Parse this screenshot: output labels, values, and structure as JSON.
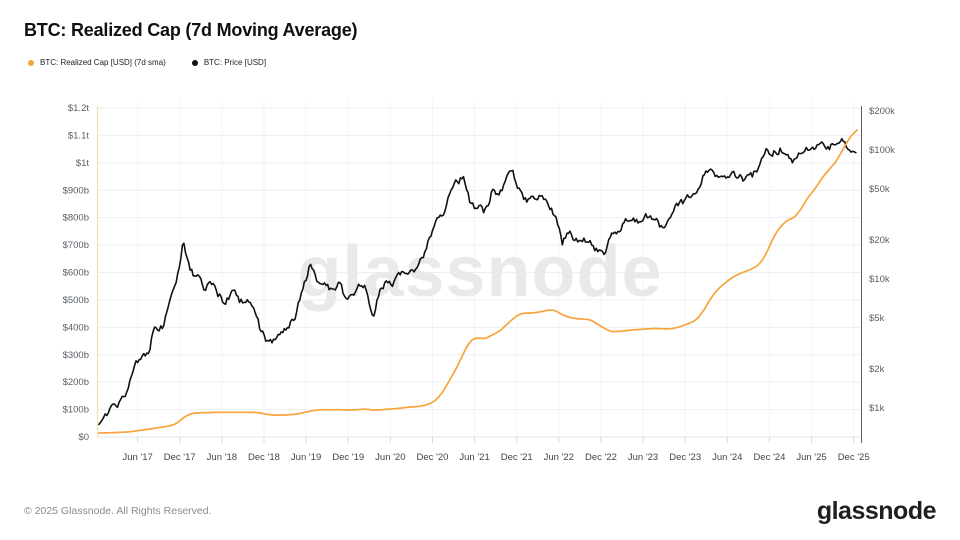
{
  "header": {
    "title": "BTC: Realized Cap (7d Moving Average)"
  },
  "legend": [
    {
      "label": "BTC: Realized Cap [USD] (7d sma)",
      "color": "#f7a43a"
    },
    {
      "label": "BTC: Price [USD]",
      "color": "#111111"
    }
  ],
  "watermark": "glassnode",
  "footer": {
    "copyright": "© 2025 Glassnode. All Rights Reserved.",
    "logo": "glassnode"
  },
  "chart_data": {
    "type": "line",
    "title": "BTC: Realized Cap (7d Moving Average)",
    "grid": true,
    "legend_position": "top-left",
    "months_start": "2016-12 (mid-month), monthly samples thereafter, ending mid 2025-12",
    "x_tick_labels": [
      "Jun '17",
      "Dec '17",
      "Jun '18",
      "Dec '18",
      "Jun '19",
      "Dec '19",
      "Jun '20",
      "Dec '20",
      "Jun '21",
      "Dec '21",
      "Jun '22",
      "Dec '22",
      "Jun '23",
      "Dec '23",
      "Jun '24",
      "Dec '24",
      "Jun '25",
      "Dec '25"
    ],
    "left_axis": {
      "title": "Realized Cap [USD]",
      "scale": "linear",
      "min": 0,
      "max": 1200000000000,
      "ticks": [
        {
          "label": "$0",
          "billions": 0
        },
        {
          "label": "$100b",
          "billions": 100
        },
        {
          "label": "$200b",
          "billions": 200
        },
        {
          "label": "$300b",
          "billions": 300
        },
        {
          "label": "$400b",
          "billions": 400
        },
        {
          "label": "$500b",
          "billions": 500
        },
        {
          "label": "$600b",
          "billions": 600
        },
        {
          "label": "$700b",
          "billions": 700
        },
        {
          "label": "$800b",
          "billions": 800
        },
        {
          "label": "$900b",
          "billions": 900
        },
        {
          "label": "$1t",
          "billions": 1000
        },
        {
          "label": "$1.1t",
          "billions": 1100
        },
        {
          "label": "$1.2t",
          "billions": 1200
        }
      ]
    },
    "right_axis": {
      "title": "Price [USD]",
      "scale": "log",
      "min": 700,
      "max": 230000,
      "ticks": [
        {
          "label": "$1k",
          "usd": 1000
        },
        {
          "label": "$2k",
          "usd": 2000
        },
        {
          "label": "$5k",
          "usd": 5000
        },
        {
          "label": "$10k",
          "usd": 10000
        },
        {
          "label": "$20k",
          "usd": 20000
        },
        {
          "label": "$50k",
          "usd": 50000
        },
        {
          "label": "$100k",
          "usd": 100000
        },
        {
          "label": "$200k",
          "usd": 200000
        }
      ]
    },
    "series": [
      {
        "name": "BTC: Realized Cap [USD] (7d sma)",
        "axis": "left",
        "color": "#f7a43a",
        "unit": "USD billions",
        "monthly_values": [
          14.5,
          15,
          16,
          17,
          18,
          21,
          25,
          28,
          32,
          36,
          40,
          48,
          70,
          85,
          88,
          89,
          89,
          90,
          90,
          90,
          90,
          90,
          90,
          88,
          82,
          80,
          80,
          81,
          83,
          88,
          94,
          98,
          100,
          99,
          100,
          99,
          98,
          100,
          102,
          98,
          99,
          101,
          103,
          105,
          109,
          110,
          113,
          120,
          134,
          165,
          210,
          255,
          310,
          355,
          362,
          358,
          372,
          385,
          408,
          432,
          450,
          452,
          453,
          457,
          463,
          462,
          446,
          436,
          432,
          430,
          428,
          412,
          396,
          384,
          385,
          387,
          391,
          392,
          394,
          396,
          395,
          394,
          397,
          404,
          414,
          425,
          455,
          500,
          535,
          558,
          578,
          593,
          603,
          613,
          628,
          665,
          725,
          765,
          790,
          800,
          830,
          875,
          905,
          945,
          975,
          1005,
          1050,
          1095,
          1120
        ]
      },
      {
        "name": "BTC: Price [USD]",
        "axis": "right",
        "color": "#111111",
        "unit": "USD",
        "monthly_values": [
          790,
          900,
          1050,
          1100,
          1250,
          2100,
          2500,
          2700,
          4400,
          4200,
          6100,
          9900,
          19000,
          11200,
          10300,
          8300,
          9250,
          7500,
          6400,
          7750,
          6900,
          6600,
          6350,
          4050,
          3300,
          3450,
          3850,
          4100,
          5300,
          8550,
          12500,
          10100,
          9600,
          8300,
          9250,
          7550,
          7200,
          9350,
          8550,
          5000,
          8600,
          9450,
          9150,
          11350,
          11650,
          10800,
          13800,
          19700,
          29000,
          33100,
          45200,
          58900,
          60000,
          37300,
          35000,
          33500,
          47200,
          43800,
          61300,
          65000,
          46200,
          38500,
          43200,
          45500,
          37700,
          29900,
          19000,
          23300,
          20050,
          19400,
          20500,
          16500,
          16550,
          23100,
          23150,
          28500,
          29250,
          27200,
          30450,
          29250,
          26000,
          27000,
          34650,
          37700,
          42250,
          42600,
          61200,
          71300,
          60600,
          67500,
          62700,
          64600,
          59000,
          63300,
          70200,
          96400,
          93400,
          102400,
          84300,
          82500,
          94200,
          104600,
          107100,
          115800,
          108200,
          114000,
          122000,
          91000,
          89000
        ]
      }
    ]
  }
}
